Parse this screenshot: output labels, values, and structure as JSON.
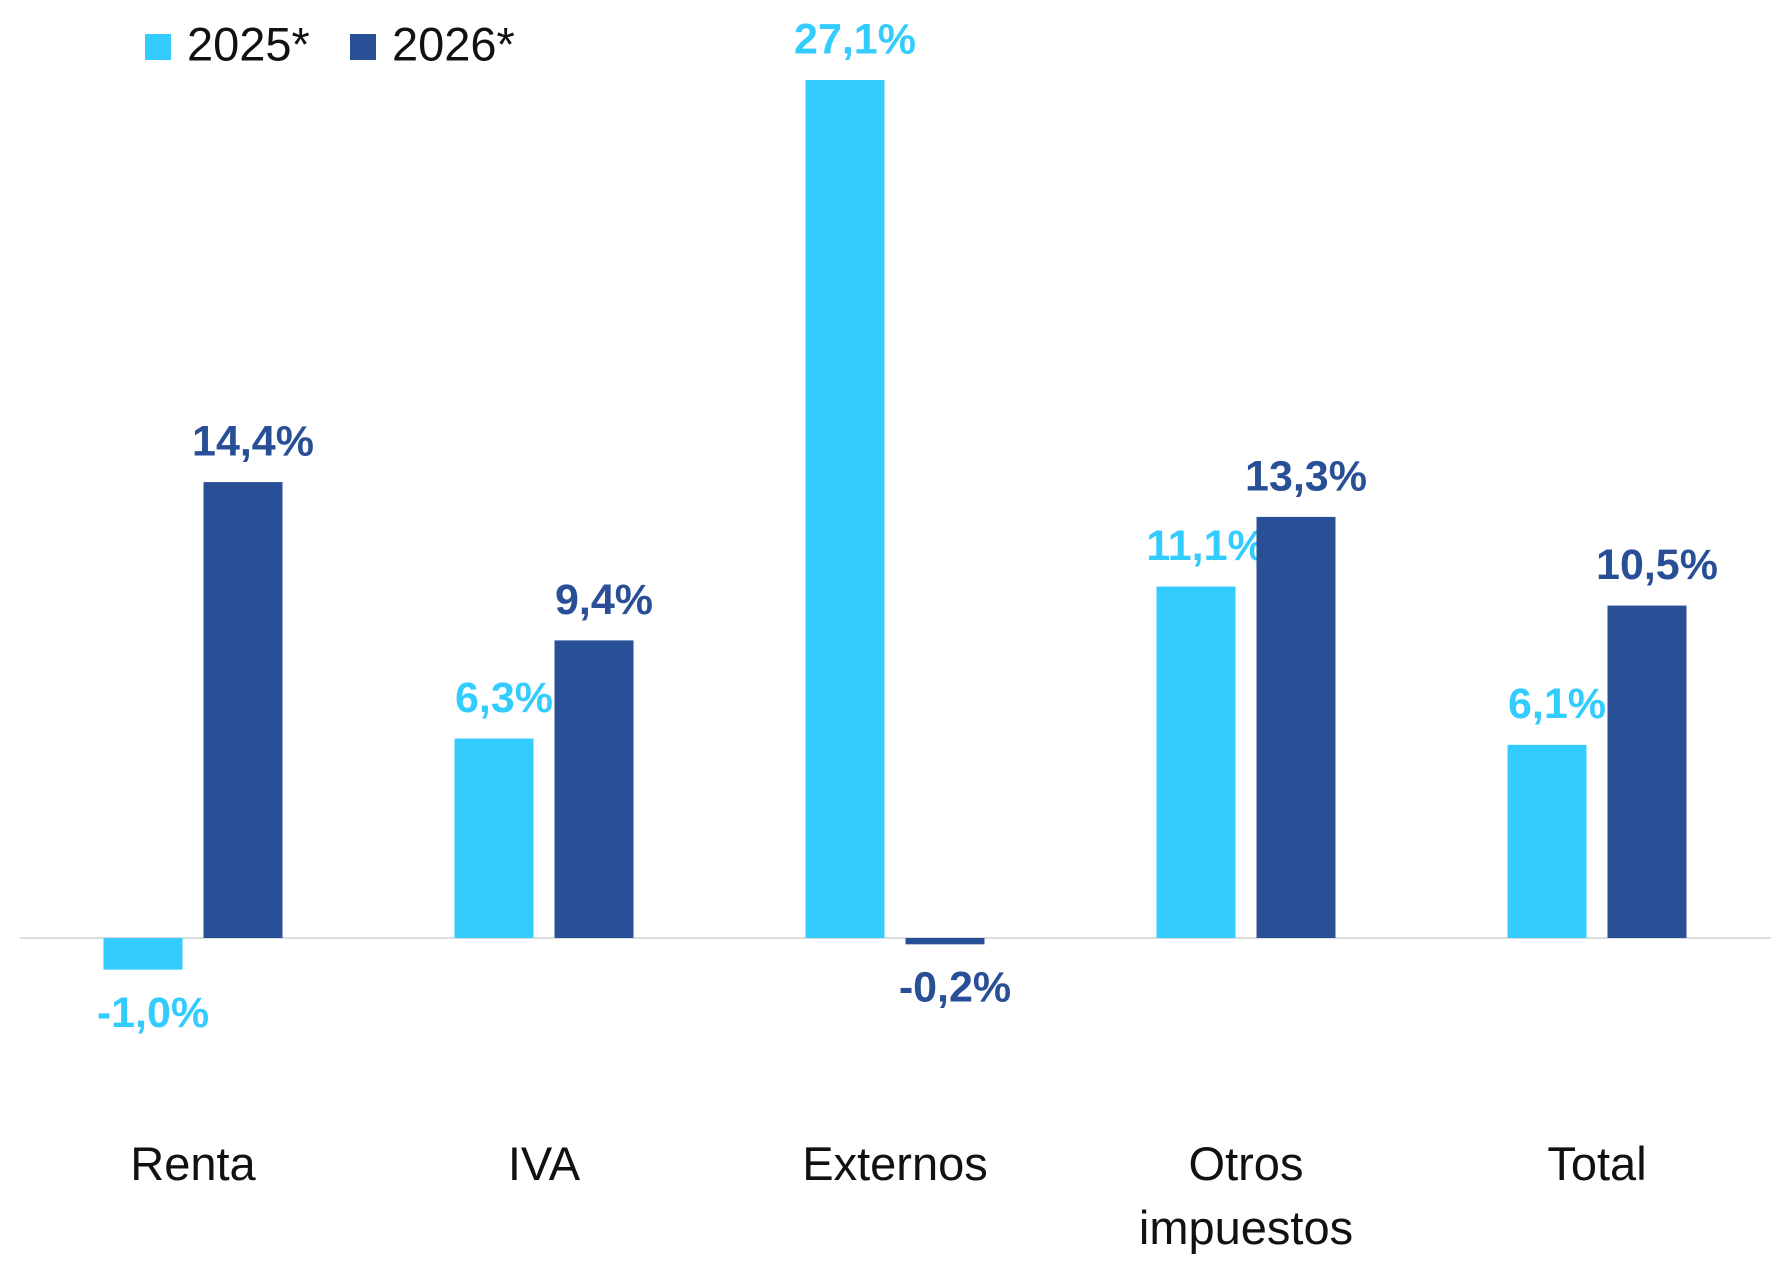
{
  "chart_data": {
    "type": "bar",
    "categories": [
      "Renta",
      "IVA",
      "Externos",
      "Otros impuestos",
      "Total"
    ],
    "series": [
      {
        "name": "2025*",
        "color": "#33ccff",
        "values": [
          -1.0,
          6.3,
          27.1,
          11.1,
          6.1
        ],
        "value_labels": [
          "-1,0%",
          "6,3%",
          "27,1%",
          "11,1%",
          "6,1%"
        ]
      },
      {
        "name": "2026*",
        "color": "#294f96",
        "values": [
          14.4,
          9.4,
          -0.2,
          13.3,
          10.5
        ],
        "value_labels": [
          "14,4%",
          "9,4%",
          "-0,2%",
          "13,3%",
          "10,5%"
        ]
      }
    ],
    "legend": "top-left"
  }
}
